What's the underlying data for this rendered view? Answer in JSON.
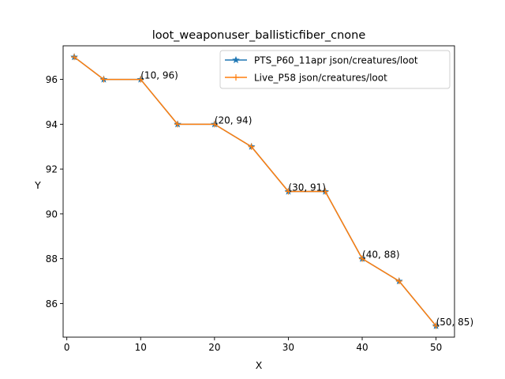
{
  "chart_data": {
    "type": "line",
    "title": "loot_weaponuser_ballisticfiber_cnone",
    "xlabel": "X",
    "ylabel": "Y",
    "xlim": [
      -0.5,
      52.5
    ],
    "ylim": [
      84.5,
      97.5
    ],
    "xticks": [
      0,
      10,
      20,
      30,
      40,
      50
    ],
    "yticks": [
      86,
      88,
      90,
      92,
      94,
      96
    ],
    "grid": false,
    "legend_position": "top-right",
    "x": [
      1,
      5,
      10,
      15,
      20,
      25,
      30,
      35,
      40,
      45,
      50
    ],
    "series": [
      {
        "name": "PTS_P60_11apr json/creatures/loot",
        "color": "#1f77b4",
        "marker": "star",
        "values": [
          97,
          96,
          96,
          94,
          94,
          93,
          91,
          91,
          88,
          87,
          85
        ]
      },
      {
        "name": "Live_P58 json/creatures/loot",
        "color": "#ff7f0e",
        "marker": "plus",
        "values": [
          97,
          96,
          96,
          94,
          94,
          93,
          91,
          91,
          88,
          87,
          85
        ]
      }
    ],
    "annotations": [
      {
        "x": 10,
        "y": 96,
        "text": "(10, 96)"
      },
      {
        "x": 20,
        "y": 94,
        "text": "(20, 94)"
      },
      {
        "x": 30,
        "y": 91,
        "text": "(30, 91)"
      },
      {
        "x": 40,
        "y": 88,
        "text": "(40, 88)"
      },
      {
        "x": 50,
        "y": 85,
        "text": "(50, 85)"
      }
    ]
  }
}
